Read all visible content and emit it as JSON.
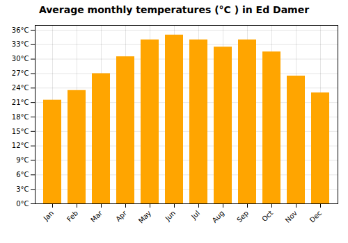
{
  "chart_data": {
    "type": "bar",
    "title": "Average monthly temperatures (°C ) in Ed Damer",
    "categories": [
      "Jan",
      "Feb",
      "Mar",
      "Apr",
      "May",
      "Jun",
      "Jul",
      "Aug",
      "Sep",
      "Oct",
      "Nov",
      "Dec"
    ],
    "values": [
      21.5,
      23.5,
      27.0,
      30.5,
      34.0,
      35.0,
      34.0,
      32.5,
      34.0,
      31.5,
      26.5,
      23.0
    ],
    "color": "#FFA500",
    "ylim": [
      0,
      37
    ],
    "yticks": [
      {
        "value": 0,
        "label": "0°C"
      },
      {
        "value": 3,
        "label": "3°C"
      },
      {
        "value": 6,
        "label": "6°C"
      },
      {
        "value": 9,
        "label": "9°C"
      },
      {
        "value": 12,
        "label": "12°C"
      },
      {
        "value": 15,
        "label": "15°C"
      },
      {
        "value": 18,
        "label": "18°C"
      },
      {
        "value": 21,
        "label": "21°C"
      },
      {
        "value": 24,
        "label": "24°C"
      },
      {
        "value": 27,
        "label": "27°C"
      },
      {
        "value": 30,
        "label": "30°C"
      },
      {
        "value": 33,
        "label": "33°C"
      },
      {
        "value": 36,
        "label": "36°C"
      }
    ],
    "grid": true
  }
}
